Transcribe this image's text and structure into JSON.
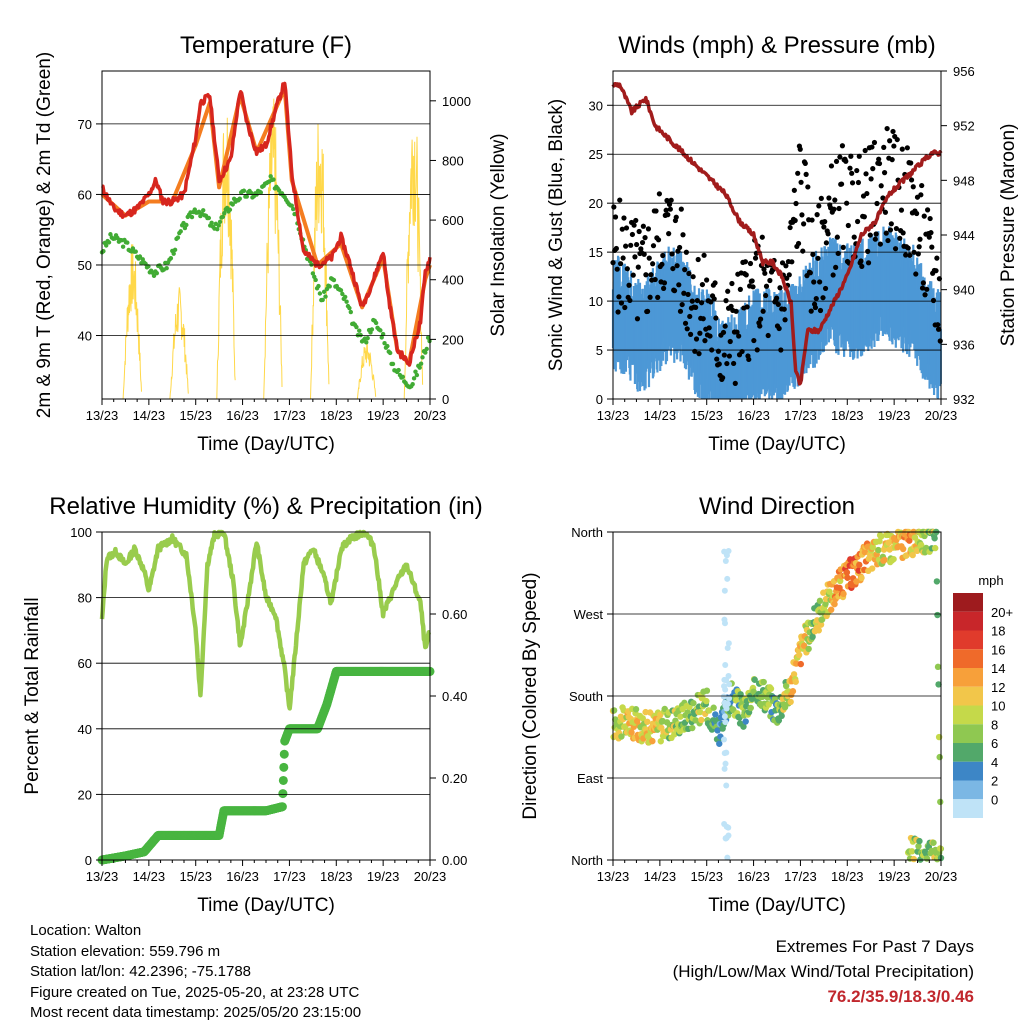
{
  "colors": {
    "temp_red": "#d7261e",
    "temp_orange": "#f47d20",
    "dewpoint_green": "#41ab34",
    "insolation_yellow": "#ffd84a",
    "wind_blue": "#4d98d6",
    "gust_black": "#000000",
    "pressure_maroon": "#a11c1c",
    "rh_green": "#99cc4d",
    "precip_green": "#48b540",
    "extremes_red": "#c1272d"
  },
  "chart_data": [
    {
      "id": "temperature",
      "type": "line",
      "title": "Temperature (F)",
      "xlabel": "Time (Day/UTC)",
      "ylabel": "2m & 9m T (Red, Orange) & 2m Td (Green)",
      "y2label": "Solar Insolation (Yellow)",
      "xticks": [
        "13/23",
        "14/23",
        "15/23",
        "16/23",
        "17/23",
        "18/23",
        "19/23",
        "20/23"
      ],
      "xlim": [
        0,
        7
      ],
      "ylim": [
        31,
        77.5
      ],
      "yticks": [
        40,
        50,
        60,
        70
      ],
      "y2lim": [
        0,
        1100
      ],
      "y2ticks": [
        0,
        200,
        400,
        600,
        800,
        1000
      ],
      "series": [
        {
          "name": "2m T",
          "axis": "left",
          "x": [
            0,
            0.25,
            0.5,
            0.75,
            1.0,
            1.15,
            1.3,
            1.5,
            1.75,
            2.0,
            2.1,
            2.3,
            2.5,
            2.75,
            2.95,
            3.1,
            3.3,
            3.5,
            3.75,
            3.9,
            4.05,
            4.3,
            4.6,
            4.9,
            5.1,
            5.3,
            5.55,
            5.8,
            6.0,
            6.1,
            6.3,
            6.55,
            6.8,
            6.9,
            7.0
          ],
          "y": [
            61,
            58,
            57,
            58,
            60,
            62,
            59,
            59,
            60,
            68,
            73,
            74,
            62,
            65,
            75,
            70,
            66,
            67,
            73,
            76,
            63,
            52,
            50,
            51,
            54,
            50,
            44,
            48,
            52,
            46,
            38,
            36,
            42,
            49,
            51
          ]
        },
        {
          "name": "9m T",
          "axis": "left",
          "x": [
            0,
            0.5,
            1.0,
            1.5,
            2.0,
            2.3,
            2.5,
            2.95,
            3.3,
            3.9,
            4.05,
            4.6,
            5.1,
            5.55,
            6.0,
            6.3,
            6.55,
            6.9,
            7.0
          ],
          "y": [
            60,
            57,
            59,
            59,
            67,
            73,
            61,
            74,
            66,
            75,
            62,
            50,
            53,
            44,
            51,
            38,
            36,
            48,
            50
          ]
        },
        {
          "name": "2m Td",
          "axis": "left",
          "x": [
            0,
            0.2,
            0.5,
            0.8,
            1.1,
            1.4,
            1.7,
            2.0,
            2.2,
            2.4,
            2.6,
            2.8,
            3.0,
            3.3,
            3.6,
            3.9,
            4.1,
            4.4,
            4.7,
            4.9,
            5.2,
            5.4,
            5.6,
            5.8,
            6.0,
            6.2,
            6.4,
            6.6,
            6.8,
            7.0
          ],
          "y": [
            52,
            54,
            53,
            51,
            49,
            50,
            55,
            58,
            57,
            55,
            57,
            59,
            60,
            60,
            62,
            60,
            58,
            51,
            45,
            48,
            45,
            41,
            39,
            42,
            40,
            36,
            34,
            33,
            36,
            40
          ]
        },
        {
          "name": "Solar Insolation",
          "axis": "right",
          "days": [
            0,
            1,
            2,
            3,
            4,
            5,
            6
          ],
          "peaks": [
            530,
            380,
            1060,
            1020,
            1020,
            200,
            1060
          ],
          "peak_window": [
            0.45,
            0.85
          ]
        }
      ]
    },
    {
      "id": "winds",
      "type": "scatter",
      "title": "Winds (mph) & Pressure (mb)",
      "xlabel": "Time (Day/UTC)",
      "ylabel": "Sonic Wind & Gust (Blue, Black)",
      "y2label": "Station Pressure (Maroon)",
      "xticks": [
        "13/23",
        "14/23",
        "15/23",
        "16/23",
        "17/23",
        "18/23",
        "19/23",
        "20/23"
      ],
      "xlim": [
        0,
        7
      ],
      "ylim": [
        0,
        33.5
      ],
      "yticks": [
        0,
        5,
        10,
        15,
        20,
        25,
        30
      ],
      "y2lim": [
        932,
        956
      ],
      "y2ticks": [
        932,
        936,
        940,
        944,
        948,
        952,
        956
      ],
      "series": [
        {
          "name": "Sonic Wind",
          "x": [
            0,
            0.3,
            0.6,
            0.9,
            1.2,
            1.5,
            1.8,
            2.1,
            2.3,
            2.6,
            2.9,
            3.2,
            3.5,
            3.7,
            4.0,
            4.3,
            4.6,
            4.9,
            5.2,
            5.5,
            5.8,
            6.1,
            6.4,
            6.7,
            7.0
          ],
          "y": [
            9,
            8,
            6,
            8,
            10,
            9,
            6,
            5,
            2,
            3,
            5,
            6,
            5,
            6,
            7,
            9,
            11,
            10,
            10,
            11,
            12,
            11,
            10,
            7,
            5
          ]
        },
        {
          "name": "Gust",
          "x": [
            0,
            0.3,
            0.6,
            0.9,
            1.2,
            1.5,
            1.8,
            2.1,
            2.3,
            2.6,
            2.9,
            3.2,
            3.5,
            3.7,
            4.0,
            4.3,
            4.6,
            4.9,
            5.2,
            5.5,
            5.8,
            6.1,
            6.4,
            6.7,
            7.0
          ],
          "y": [
            15,
            14,
            12,
            15,
            17,
            13,
            10,
            8,
            6,
            7,
            10,
            11,
            9,
            11,
            22,
            12,
            18,
            20,
            19,
            20,
            22,
            21,
            19,
            14,
            10
          ]
        },
        {
          "name": "Station Pressure",
          "x": [
            0,
            0.15,
            0.4,
            0.7,
            0.9,
            1.2,
            1.5,
            1.8,
            2.1,
            2.4,
            2.7,
            3.0,
            3.2,
            3.4,
            3.6,
            3.8,
            3.9,
            4.0,
            4.15,
            4.4,
            4.7,
            5.0,
            5.3,
            5.6,
            5.9,
            6.2,
            6.5,
            6.8,
            7.0
          ],
          "y": [
            955,
            955,
            953,
            954,
            952,
            951,
            950,
            949,
            948,
            947,
            945,
            944,
            942,
            942,
            941,
            939,
            934,
            933,
            937,
            937,
            939,
            941,
            944,
            945,
            947,
            948,
            949,
            950,
            950
          ]
        }
      ]
    },
    {
      "id": "humidity",
      "type": "line",
      "title": "Relative Humidity (%) & Precipitation (in)",
      "xlabel": "Time (Day/UTC)",
      "ylabel": "Percent & Total Rainfall",
      "xticks": [
        "13/23",
        "14/23",
        "15/23",
        "16/23",
        "17/23",
        "18/23",
        "19/23",
        "20/23"
      ],
      "xlim": [
        0,
        7
      ],
      "ylim": [
        0,
        100
      ],
      "yticks": [
        0,
        20,
        40,
        60,
        80,
        100
      ],
      "y2lim": [
        0,
        0.8
      ],
      "y2ticks": [
        "0.00",
        "0.20",
        "0.40",
        "0.60"
      ],
      "series": [
        {
          "name": "Relative Humidity",
          "x": [
            0,
            0.1,
            0.3,
            0.5,
            0.7,
            0.9,
            1.0,
            1.2,
            1.5,
            1.8,
            2.0,
            2.1,
            2.25,
            2.4,
            2.6,
            2.8,
            2.95,
            3.1,
            3.3,
            3.5,
            3.7,
            3.9,
            4.0,
            4.1,
            4.3,
            4.5,
            4.7,
            4.9,
            5.1,
            5.3,
            5.6,
            5.8,
            6.0,
            6.3,
            6.5,
            6.8,
            6.9,
            7.0
          ],
          "y": [
            73,
            92,
            94,
            90,
            95,
            88,
            82,
            95,
            98,
            93,
            70,
            50,
            90,
            99,
            100,
            85,
            65,
            78,
            97,
            80,
            75,
            58,
            46,
            60,
            90,
            95,
            88,
            78,
            95,
            98,
            100,
            96,
            75,
            85,
            90,
            78,
            64,
            70
          ]
        },
        {
          "name": "Total Precipitation",
          "x": [
            0,
            0.5,
            0.9,
            1.2,
            1.5,
            2.0,
            2.5,
            2.6,
            3.0,
            3.5,
            3.85,
            3.9,
            4.0,
            4.3,
            4.6,
            4.8,
            5.0,
            5.2,
            5.5,
            6.0,
            6.5,
            7.0
          ],
          "y": [
            0,
            0.01,
            0.02,
            0.06,
            0.06,
            0.06,
            0.06,
            0.12,
            0.12,
            0.12,
            0.13,
            0.29,
            0.32,
            0.32,
            0.32,
            0.38,
            0.46,
            0.46,
            0.46,
            0.46,
            0.46,
            0.46
          ]
        }
      ]
    },
    {
      "id": "direction",
      "type": "scatter",
      "title": "Wind Direction",
      "xlabel": "Time (Day/UTC)",
      "ylabel": "Direction (Colored By Speed)",
      "xticks": [
        "13/23",
        "14/23",
        "15/23",
        "16/23",
        "17/23",
        "18/23",
        "19/23",
        "20/23"
      ],
      "xlim": [
        0,
        7
      ],
      "ylim": [
        0,
        360
      ],
      "yticklabels": [
        "North",
        "East",
        "South",
        "West",
        "North"
      ],
      "colorbar": {
        "title": "mph",
        "labels": [
          "20+",
          "18",
          "16",
          "14",
          "12",
          "10",
          "8",
          "6",
          "4",
          "2",
          "0"
        ],
        "colors": [
          "#9e1b1e",
          "#c8262a",
          "#e03b2c",
          "#ef6a2a",
          "#f7a03a",
          "#f2c64a",
          "#c5d94a",
          "#8fc851",
          "#52a86a",
          "#3d86c6",
          "#7bb7e4",
          "#bfe3f7"
        ]
      },
      "series": [
        {
          "name": "Direction",
          "x": [
            0,
            0.4,
            0.8,
            1.2,
            1.6,
            2.0,
            2.3,
            2.5,
            2.8,
            3.1,
            3.5,
            3.8,
            4.0,
            4.2,
            4.5,
            4.8,
            5.1,
            5.4,
            5.7,
            6.0,
            6.3,
            6.6,
            6.9,
            7.0
          ],
          "y": [
            150,
            150,
            145,
            150,
            160,
            170,
            140,
            180,
            160,
            190,
            165,
            190,
            230,
            250,
            280,
            300,
            315,
            330,
            340,
            345,
            350,
            355,
            355,
            5
          ],
          "speed": [
            10,
            11,
            12,
            9,
            8,
            9,
            5,
            6,
            7,
            9,
            6,
            12,
            14,
            8,
            10,
            13,
            15,
            14,
            11,
            12,
            13,
            10,
            8,
            6
          ]
        }
      ]
    }
  ],
  "info": {
    "location": "Location: Walton",
    "elevation": "Station elevation: 559.796 m",
    "latlon": "Station lat/lon: 42.2396; -75.1788",
    "created": "Figure created on Tue, 2025-05-20, at 23:28 UTC",
    "timestamp": "Most recent data timestamp: 2025/05/20 23:15:00"
  },
  "extremes": {
    "line1": "Extremes For Past 7 Days",
    "line2": "(High/Low/Max Wind/Total Precipitation)",
    "value": "76.2/35.9/18.3/0.46"
  }
}
